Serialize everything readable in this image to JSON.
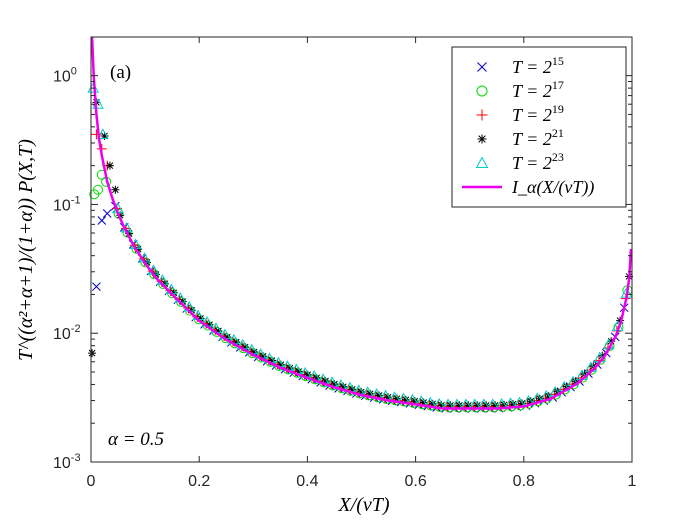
{
  "chart_data": {
    "type": "scatter",
    "panel_label": "(a)",
    "annotation": "α = 0.5",
    "xlabel": "X/(vT)",
    "ylabel": "T^((α²+α+1)/(1+α)) P(X,T)",
    "xlim": [
      0,
      1
    ],
    "ylim_log10": [
      -3,
      0.3
    ],
    "yscale": "log",
    "x_ticks": [
      0,
      0.2,
      0.4,
      0.6,
      0.8,
      1
    ],
    "x_tick_labels": [
      "0",
      "0.2",
      "0.4",
      "0.6",
      "0.8",
      "1"
    ],
    "y_ticks_log10": [
      -3,
      -2,
      -1,
      0
    ],
    "y_tick_labels": [
      {
        "base": "10",
        "exp": "-3"
      },
      {
        "base": "10",
        "exp": "-2"
      },
      {
        "base": "10",
        "exp": "-1"
      },
      {
        "base": "10",
        "exp": "0"
      }
    ],
    "grid": false,
    "legend_position": "top-right",
    "series": [
      {
        "name": "T = 2^15",
        "label_base": "T = 2",
        "label_exp": "15",
        "marker": "x",
        "color": "#0000cc",
        "early_points": [
          [
            0.01,
            0.023
          ],
          [
            0.02,
            0.075
          ],
          [
            0.03,
            0.085
          ]
        ]
      },
      {
        "name": "T = 2^17",
        "label_base": "T = 2",
        "label_exp": "17",
        "marker": "circle",
        "color": "#00dd00",
        "early_points": [
          [
            0.006,
            0.12
          ],
          [
            0.013,
            0.13
          ],
          [
            0.02,
            0.17
          ],
          [
            0.028,
            0.15
          ]
        ]
      },
      {
        "name": "T = 2^19",
        "label_base": "T = 2",
        "label_exp": "19",
        "marker": "plus",
        "color": "#ff0000",
        "early_points": [
          [
            0.01,
            0.35
          ],
          [
            0.02,
            0.27
          ],
          [
            0.03,
            0.2
          ]
        ]
      },
      {
        "name": "T = 2^21",
        "label_base": "T = 2",
        "label_exp": "21",
        "marker": "star",
        "color": "#000000",
        "early_points": [
          [
            0.002,
            0.007
          ],
          [
            0.01,
            0.62
          ],
          [
            0.025,
            0.34
          ],
          [
            0.035,
            0.2
          ],
          [
            0.045,
            0.13
          ]
        ]
      },
      {
        "name": "T = 2^23",
        "label_base": "T = 2",
        "label_exp": "23",
        "marker": "triangle",
        "color": "#00cccc",
        "early_points": [
          [
            0.004,
            0.8
          ],
          [
            0.013,
            0.6
          ],
          [
            0.022,
            0.35
          ]
        ]
      }
    ],
    "curve": {
      "name": "I_α(X/(vT))",
      "color": "#ee00ee",
      "x": [
        0.002,
        0.005,
        0.01,
        0.015,
        0.02,
        0.03,
        0.04,
        0.05,
        0.06,
        0.08,
        0.1,
        0.12,
        0.15,
        0.2,
        0.25,
        0.3,
        0.35,
        0.4,
        0.45,
        0.5,
        0.55,
        0.6,
        0.65,
        0.7,
        0.75,
        0.8,
        0.85,
        0.9,
        0.93,
        0.95,
        0.97,
        0.98,
        0.99,
        0.995,
        0.998
      ],
      "y": [
        2.2,
        1.0,
        0.5,
        0.32,
        0.24,
        0.15,
        0.11,
        0.085,
        0.068,
        0.047,
        0.035,
        0.027,
        0.02,
        0.0125,
        0.0089,
        0.0068,
        0.0054,
        0.0045,
        0.0038,
        0.0033,
        0.003,
        0.0028,
        0.0026,
        0.0026,
        0.0026,
        0.0027,
        0.0031,
        0.0041,
        0.0053,
        0.0067,
        0.0095,
        0.0125,
        0.019,
        0.027,
        0.045
      ]
    }
  }
}
